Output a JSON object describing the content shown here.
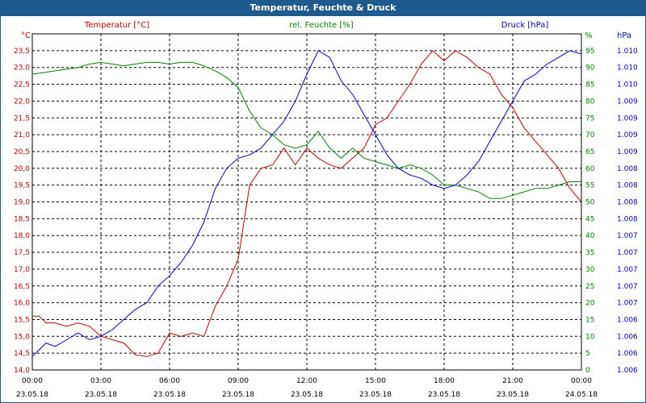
{
  "window": {
    "title": "Temperatur, Feuchte & Druck"
  },
  "colors": {
    "temperature": "#c00000",
    "humidity": "#008000",
    "pressure": "#0000c0",
    "titlebar": "#1f5a8e",
    "grid": "#000000"
  },
  "chart_data": {
    "type": "line",
    "title": "Temperatur, Feuchte & Druck",
    "x_ticks": [
      {
        "time": "00:00",
        "date": "23.05.18"
      },
      {
        "time": "03:00",
        "date": "23.05.18"
      },
      {
        "time": "06:00",
        "date": "23.05.18"
      },
      {
        "time": "09:00",
        "date": "23.05.18"
      },
      {
        "time": "12:00",
        "date": "23.05.18"
      },
      {
        "time": "15:00",
        "date": "23.05.18"
      },
      {
        "time": "18:00",
        "date": "23.05.18"
      },
      {
        "time": "21:00",
        "date": "23.05.18"
      },
      {
        "time": "00:00",
        "date": "24.05.18"
      }
    ],
    "xlim_hours": [
      0,
      24
    ],
    "axes": {
      "temperature": {
        "label": "Temperatur [°C]",
        "unit": "°C",
        "ylim": [
          14.0,
          24.0
        ],
        "ticks": [
          "14,0",
          "14,5",
          "15,0",
          "15,5",
          "16,0",
          "16,5",
          "17,0",
          "17,5",
          "18,0",
          "18,5",
          "19,0",
          "19,5",
          "20,0",
          "20,5",
          "21,0",
          "21,5",
          "22,0",
          "22,5",
          "23,0",
          "23,5"
        ]
      },
      "humidity": {
        "label": "rel. Feuchte [%]",
        "unit": "%",
        "ylim": [
          0,
          100
        ],
        "ticks": [
          "0",
          "5",
          "10",
          "15",
          "20",
          "25",
          "30",
          "35",
          "40",
          "45",
          "50",
          "55",
          "60",
          "65",
          "70",
          "75",
          "80",
          "85",
          "90",
          "95"
        ]
      },
      "pressure": {
        "label": "Druck [hPa]",
        "unit": "hPa",
        "ticks": [
          "1.006",
          "1.006",
          "1.006",
          "1.006",
          "1.007",
          "1.007",
          "1.007",
          "1.007",
          "1.007",
          "1.008",
          "1.008",
          "1.008",
          "1.008",
          "1.009",
          "1.009",
          "1.009",
          "1.009",
          "1.010",
          "1.010",
          "1.010"
        ]
      }
    },
    "series": [
      {
        "name": "Temperatur",
        "axis": "temperature",
        "color": "#c00000",
        "x": [
          0,
          0.3,
          0.6,
          1.0,
          1.5,
          2.0,
          2.5,
          3.0,
          3.5,
          4.0,
          4.5,
          5.0,
          5.5,
          6.0,
          6.5,
          7.0,
          7.5,
          8.0,
          8.5,
          9.0,
          9.5,
          10.0,
          10.5,
          11.0,
          11.5,
          12.0,
          12.5,
          13.0,
          13.5,
          14.0,
          14.5,
          15.0,
          15.5,
          16.0,
          16.5,
          17.0,
          17.5,
          18.0,
          18.5,
          19.0,
          19.5,
          20.0,
          20.5,
          21.0,
          21.5,
          22.0,
          22.5,
          23.0,
          23.5,
          24.0
        ],
        "values": [
          15.6,
          15.6,
          15.4,
          15.4,
          15.3,
          15.4,
          15.3,
          15.0,
          14.9,
          14.8,
          14.45,
          14.4,
          14.5,
          15.1,
          15.0,
          15.1,
          15.0,
          15.9,
          16.5,
          17.3,
          19.5,
          20.0,
          20.1,
          20.6,
          20.1,
          20.6,
          20.3,
          20.1,
          20.0,
          20.3,
          20.6,
          21.3,
          21.5,
          22.0,
          22.5,
          23.1,
          23.5,
          23.2,
          23.5,
          23.3,
          23.0,
          22.8,
          22.2,
          21.8,
          21.2,
          20.8,
          20.4,
          20.0,
          19.4,
          19.0
        ]
      },
      {
        "name": "rel. Feuchte",
        "axis": "humidity",
        "color": "#008000",
        "x": [
          0,
          0.5,
          1.0,
          1.5,
          2.0,
          2.5,
          3.0,
          3.5,
          4.0,
          4.5,
          5.0,
          5.5,
          6.0,
          6.5,
          7.0,
          7.5,
          8.0,
          8.5,
          9.0,
          9.5,
          10.0,
          10.5,
          11.0,
          11.5,
          12.0,
          12.5,
          13.0,
          13.5,
          14.0,
          14.5,
          15.0,
          15.5,
          16.0,
          16.5,
          17.0,
          17.5,
          18.0,
          18.5,
          19.0,
          19.5,
          20.0,
          20.5,
          21.0,
          21.5,
          22.0,
          22.5,
          23.0,
          23.5,
          24.0
        ],
        "values": [
          88,
          88.5,
          89,
          89.5,
          90,
          91,
          91.5,
          91,
          90.5,
          91,
          91.5,
          91.5,
          91,
          91.5,
          91.5,
          90.5,
          89,
          87,
          84,
          77,
          72,
          70,
          67,
          66,
          67,
          71,
          66,
          63,
          66,
          63,
          62,
          61,
          60,
          61,
          60,
          58,
          55,
          55,
          54,
          53,
          51,
          51,
          52,
          53,
          54,
          54,
          55,
          56,
          56
        ]
      },
      {
        "name": "Druck",
        "axis": "pressure",
        "color": "#0000c0",
        "unit_note": "values expressed in humidity-axis position units (0-100) because pressure tick labels are rounded",
        "x": [
          0,
          0.3,
          0.6,
          1.0,
          1.5,
          2.0,
          2.5,
          3.0,
          3.5,
          4.0,
          4.5,
          5.0,
          5.5,
          6.0,
          6.5,
          7.0,
          7.5,
          8.0,
          8.5,
          9.0,
          9.5,
          10.0,
          10.5,
          11.0,
          11.5,
          12.0,
          12.5,
          13.0,
          13.5,
          14.0,
          14.5,
          15.0,
          15.5,
          16.0,
          16.5,
          17.0,
          17.5,
          18.0,
          18.5,
          19.0,
          19.5,
          20.0,
          20.5,
          21.0,
          21.5,
          22.0,
          22.5,
          23.0,
          23.5,
          24.0
        ],
        "values": [
          4,
          6,
          8,
          7,
          9,
          11,
          9,
          10,
          12,
          15,
          18,
          20,
          25,
          28,
          32,
          37,
          44,
          54,
          60,
          63,
          64,
          66,
          70,
          74,
          80,
          88,
          95,
          93,
          86,
          82,
          76,
          70,
          64,
          60,
          58,
          57,
          55,
          54,
          55,
          58,
          62,
          68,
          74,
          80,
          86,
          88,
          91,
          93,
          95,
          94
        ]
      }
    ]
  }
}
